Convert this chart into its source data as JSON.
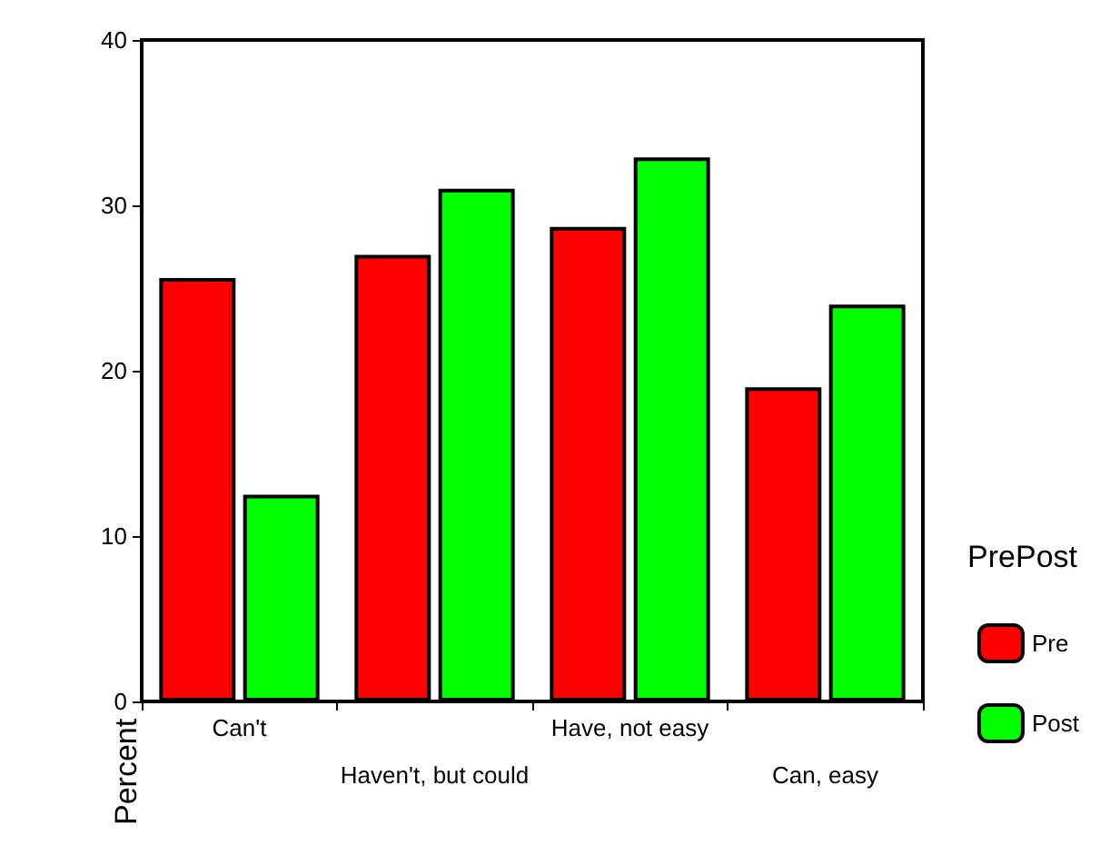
{
  "chart_data": {
    "type": "bar",
    "ylabel": "Percent",
    "legend_title": "PrePost",
    "categories": [
      "Can't",
      "Haven't, but could",
      "Have, not easy",
      "Can, easy"
    ],
    "series": [
      {
        "name": "Pre",
        "color": "#ff0000",
        "values": [
          25.6,
          27.0,
          28.7,
          19.0
        ]
      },
      {
        "name": "Post",
        "color": "#00ff00",
        "values": [
          12.5,
          31.0,
          32.9,
          24.0
        ]
      }
    ],
    "ylim": [
      0,
      40
    ],
    "yticks": [
      0,
      10,
      20,
      30,
      40
    ],
    "grid": false,
    "legend": "right"
  }
}
